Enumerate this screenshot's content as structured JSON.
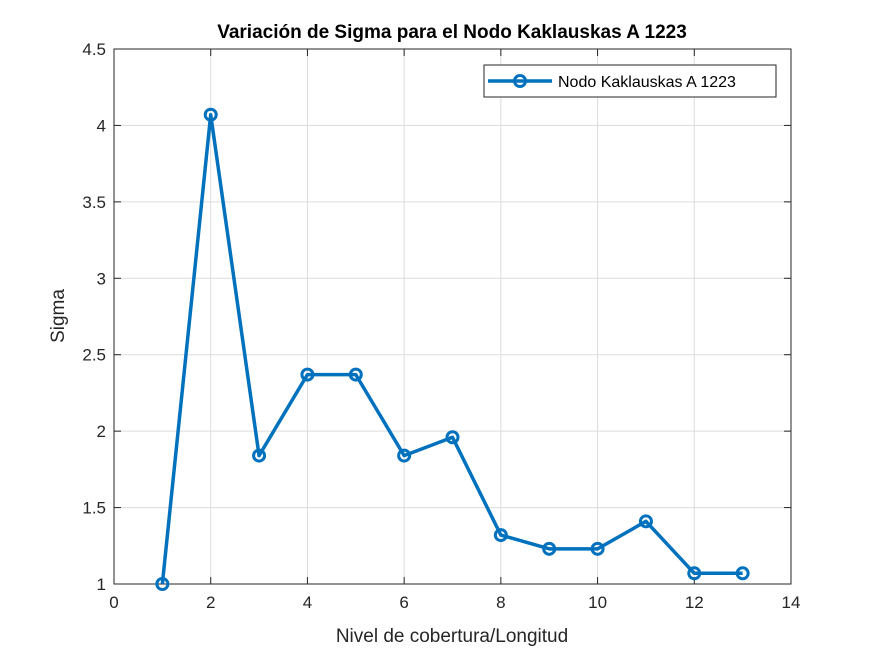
{
  "chart_data": {
    "type": "line",
    "title": "Variación de Sigma para el Nodo Kaklauskas A 1223",
    "xlabel": "Nivel de cobertura/Longitud",
    "ylabel": "Sigma",
    "xlim": [
      0,
      14
    ],
    "ylim": [
      1,
      4.5
    ],
    "xticks": [
      "0",
      "2",
      "4",
      "6",
      "8",
      "10",
      "12",
      "14"
    ],
    "yticks": [
      "1",
      "1.5",
      "2",
      "2.5",
      "3",
      "3.5",
      "4",
      "4.5"
    ],
    "grid": true,
    "legend_position": "top-right",
    "series": [
      {
        "name": "Nodo Kaklauskas A 1223",
        "color": "#0072BD",
        "marker": "circle",
        "x": [
          1,
          2,
          3,
          4,
          5,
          6,
          7,
          8,
          9,
          10,
          11,
          12,
          13
        ],
        "y": [
          1.0,
          4.07,
          1.84,
          2.37,
          2.37,
          1.84,
          1.96,
          1.32,
          1.23,
          1.23,
          1.41,
          1.07,
          1.07
        ]
      }
    ]
  }
}
